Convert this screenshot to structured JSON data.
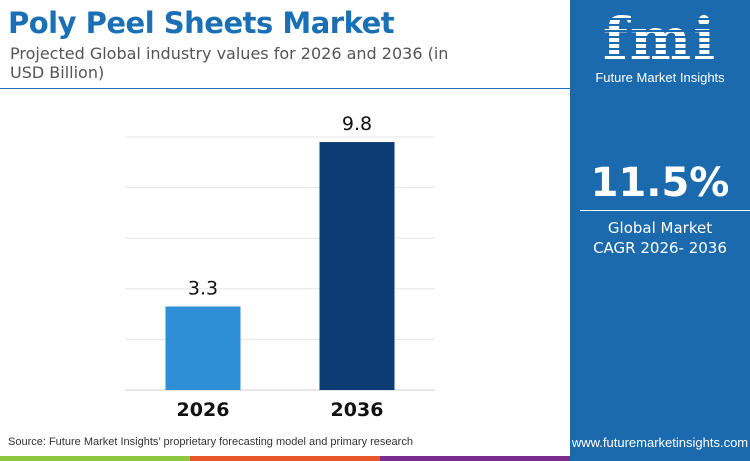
{
  "header": {
    "title": "Poly Peel Sheets Market",
    "subtitle": "Projected Global industry values for 2026 and 2036 (in USD Billion)"
  },
  "chart_data": {
    "type": "bar",
    "categories": [
      "2026",
      "2036"
    ],
    "values": [
      3.3,
      9.8
    ],
    "ylim": [
      0,
      10
    ],
    "grid": true,
    "colors": [
      "#2e8fd6",
      "#0c3a72"
    ],
    "title": "",
    "xlabel": "",
    "ylabel": ""
  },
  "panel": {
    "brand": "Future Market Insights",
    "logo_text": "fmi",
    "cagr": "11.5%",
    "cagr_label_1": "Global Market",
    "cagr_label_2": "CAGR 2026- 2036",
    "url": "www.futuremarketinsights.com"
  },
  "footer": {
    "source": "Source: Future Market Insights’ proprietary forecasting model and primary research",
    "stripe_colors": [
      "#8dc63f",
      "#e8572a",
      "#7b2d8e"
    ]
  }
}
